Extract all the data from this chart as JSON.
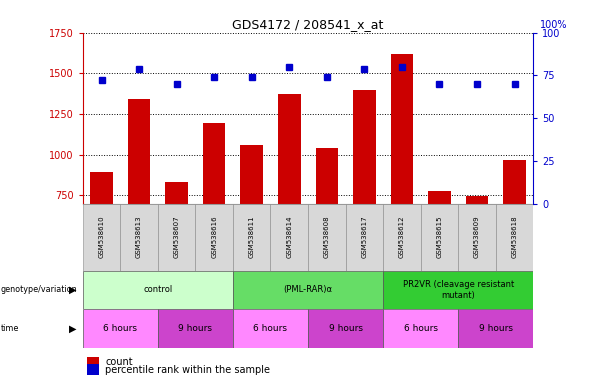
{
  "title": "GDS4172 / 208541_x_at",
  "samples": [
    "GSM538610",
    "GSM538613",
    "GSM538607",
    "GSM538616",
    "GSM538611",
    "GSM538614",
    "GSM538608",
    "GSM538617",
    "GSM538612",
    "GSM538615",
    "GSM538609",
    "GSM538618"
  ],
  "counts": [
    893,
    1343,
    830,
    1193,
    1060,
    1375,
    1040,
    1400,
    1620,
    775,
    745,
    965
  ],
  "percentiles": [
    72,
    79,
    70,
    74,
    74,
    80,
    74,
    79,
    80,
    70,
    70,
    70
  ],
  "ylim_left": [
    700,
    1750
  ],
  "ylim_right": [
    0,
    100
  ],
  "yticks_left": [
    750,
    1000,
    1250,
    1500,
    1750
  ],
  "yticks_right": [
    0,
    25,
    50,
    75,
    100
  ],
  "genotype_groups": [
    {
      "label": "control",
      "start": 0,
      "end": 4,
      "color": "#ccffcc"
    },
    {
      "label": "(PML-RAR)α",
      "start": 4,
      "end": 8,
      "color": "#66dd66"
    },
    {
      "label": "PR2VR (cleavage resistant\nmutant)",
      "start": 8,
      "end": 12,
      "color": "#33cc33"
    }
  ],
  "time_groups": [
    {
      "label": "6 hours",
      "start": 0,
      "end": 2,
      "color": "#ff88ff"
    },
    {
      "label": "9 hours",
      "start": 2,
      "end": 4,
      "color": "#cc44cc"
    },
    {
      "label": "6 hours",
      "start": 4,
      "end": 6,
      "color": "#ff88ff"
    },
    {
      "label": "9 hours",
      "start": 6,
      "end": 8,
      "color": "#cc44cc"
    },
    {
      "label": "6 hours",
      "start": 8,
      "end": 10,
      "color": "#ff88ff"
    },
    {
      "label": "9 hours",
      "start": 10,
      "end": 12,
      "color": "#cc44cc"
    }
  ],
  "bar_color": "#cc0000",
  "dot_color": "#0000cc",
  "bar_width": 0.6,
  "grid_color": "#000000",
  "background_color": "#ffffff",
  "left_axis_color": "#cc0000",
  "right_axis_color": "#0000cc"
}
